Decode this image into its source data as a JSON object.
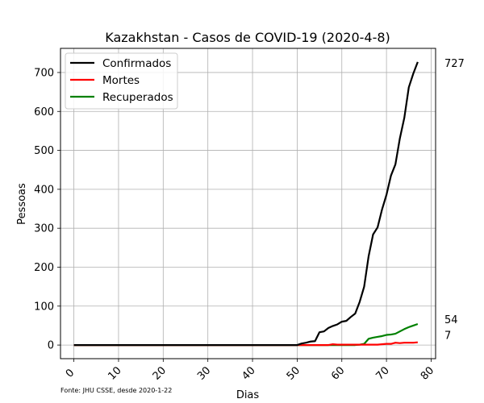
{
  "chart_data": {
    "type": "line",
    "title": "Kazakhstan - Casos de COVID-19 (2020-4-8)",
    "xlabel": "Dias",
    "ylabel": "Pessoas",
    "source_note": "Fonte: JHU CSSE, desde 2020-1-22",
    "xlim": [
      -3,
      81
    ],
    "ylim": [
      -35,
      762
    ],
    "xticks": [
      0,
      10,
      20,
      30,
      40,
      50,
      60,
      70,
      80
    ],
    "yticks": [
      0,
      100,
      200,
      300,
      400,
      500,
      600,
      700
    ],
    "grid": true,
    "legend_position": "top-left",
    "end_labels": [
      "727",
      "54",
      "7"
    ],
    "series": [
      {
        "name": "Confirmados",
        "color": "#000000",
        "x": [
          0,
          1,
          2,
          3,
          4,
          5,
          6,
          7,
          8,
          9,
          10,
          11,
          12,
          13,
          14,
          15,
          16,
          17,
          18,
          19,
          20,
          21,
          22,
          23,
          24,
          25,
          26,
          27,
          28,
          29,
          30,
          31,
          32,
          33,
          34,
          35,
          36,
          37,
          38,
          39,
          40,
          41,
          42,
          43,
          44,
          45,
          46,
          47,
          48,
          49,
          50,
          51,
          52,
          53,
          54,
          55,
          56,
          57,
          58,
          59,
          60,
          61,
          62,
          63,
          64,
          65,
          66,
          67,
          68,
          69,
          70,
          71,
          72,
          73,
          74,
          75,
          76,
          77
        ],
        "values": [
          0,
          0,
          0,
          0,
          0,
          0,
          0,
          0,
          0,
          0,
          0,
          0,
          0,
          0,
          0,
          0,
          0,
          0,
          0,
          0,
          0,
          0,
          0,
          0,
          0,
          0,
          0,
          0,
          0,
          0,
          0,
          0,
          0,
          0,
          0,
          0,
          0,
          0,
          0,
          0,
          0,
          0,
          0,
          0,
          0,
          0,
          0,
          0,
          0,
          0,
          0,
          4,
          6,
          9,
          10,
          33,
          35,
          44,
          49,
          53,
          60,
          62,
          72,
          81,
          111,
          150,
          228,
          284,
          302,
          348,
          386,
          435,
          464,
          531,
          584,
          662,
          697,
          727
        ]
      },
      {
        "name": "Mortes",
        "color": "#ff0000",
        "x": [
          0,
          1,
          2,
          3,
          4,
          5,
          6,
          7,
          8,
          9,
          10,
          11,
          12,
          13,
          14,
          15,
          16,
          17,
          18,
          19,
          20,
          21,
          22,
          23,
          24,
          25,
          26,
          27,
          28,
          29,
          30,
          31,
          32,
          33,
          34,
          35,
          36,
          37,
          38,
          39,
          40,
          41,
          42,
          43,
          44,
          45,
          46,
          47,
          48,
          49,
          50,
          51,
          52,
          53,
          54,
          55,
          56,
          57,
          58,
          59,
          60,
          61,
          62,
          63,
          64,
          65,
          66,
          67,
          68,
          69,
          70,
          71,
          72,
          73,
          74,
          75,
          76,
          77
        ],
        "values": [
          0,
          0,
          0,
          0,
          0,
          0,
          0,
          0,
          0,
          0,
          0,
          0,
          0,
          0,
          0,
          0,
          0,
          0,
          0,
          0,
          0,
          0,
          0,
          0,
          0,
          0,
          0,
          0,
          0,
          0,
          0,
          0,
          0,
          0,
          0,
          0,
          0,
          0,
          0,
          0,
          0,
          0,
          0,
          0,
          0,
          0,
          0,
          0,
          0,
          0,
          0,
          0,
          0,
          0,
          0,
          0,
          0,
          0,
          2,
          1,
          1,
          1,
          1,
          1,
          1,
          1,
          1,
          1,
          1,
          2,
          3,
          3,
          6,
          5,
          6,
          6,
          6,
          7
        ]
      },
      {
        "name": "Recuperados",
        "color": "#008000",
        "x": [
          0,
          1,
          2,
          3,
          4,
          5,
          6,
          7,
          8,
          9,
          10,
          11,
          12,
          13,
          14,
          15,
          16,
          17,
          18,
          19,
          20,
          21,
          22,
          23,
          24,
          25,
          26,
          27,
          28,
          29,
          30,
          31,
          32,
          33,
          34,
          35,
          36,
          37,
          38,
          39,
          40,
          41,
          42,
          43,
          44,
          45,
          46,
          47,
          48,
          49,
          50,
          51,
          52,
          53,
          54,
          55,
          56,
          57,
          58,
          59,
          60,
          61,
          62,
          63,
          64,
          65,
          66,
          67,
          68,
          69,
          70,
          71,
          72,
          73,
          74,
          75,
          76,
          77
        ],
        "values": [
          0,
          0,
          0,
          0,
          0,
          0,
          0,
          0,
          0,
          0,
          0,
          0,
          0,
          0,
          0,
          0,
          0,
          0,
          0,
          0,
          0,
          0,
          0,
          0,
          0,
          0,
          0,
          0,
          0,
          0,
          0,
          0,
          0,
          0,
          0,
          0,
          0,
          0,
          0,
          0,
          0,
          0,
          0,
          0,
          0,
          0,
          0,
          0,
          0,
          0,
          0,
          0,
          0,
          0,
          0,
          0,
          0,
          0,
          0,
          0,
          0,
          0,
          0,
          0,
          1,
          3,
          16,
          19,
          21,
          23,
          26,
          27,
          29,
          35,
          41,
          46,
          50,
          54
        ]
      }
    ]
  }
}
